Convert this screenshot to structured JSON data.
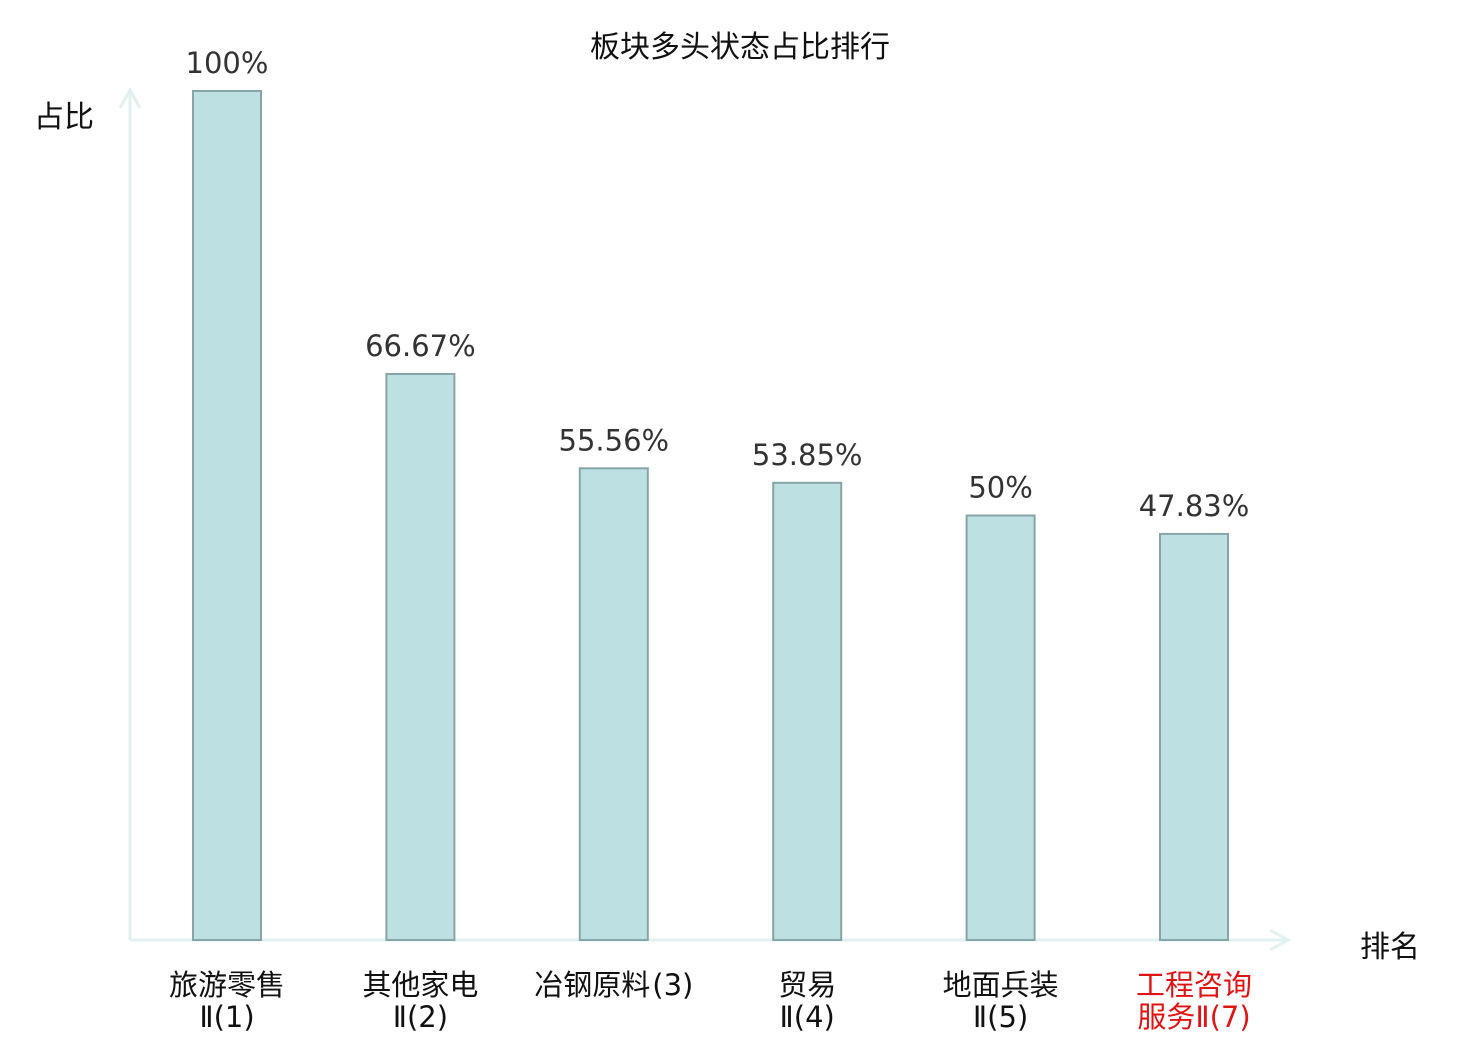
{
  "chart_data": {
    "type": "bar",
    "title": "板块多头状态占比排行",
    "xlabel": "排名",
    "ylabel": "占比",
    "ylim": [
      0,
      100
    ],
    "grid": false,
    "legend": "none",
    "categories": [
      {
        "name": "旅游零售",
        "rank": "Ⅱ(1)",
        "highlight": false
      },
      {
        "name": "其他家电",
        "rank": "Ⅱ(2)",
        "highlight": false
      },
      {
        "name": "冶钢原料",
        "rank": "(3)",
        "highlight": false
      },
      {
        "name": "贸易",
        "rank": "Ⅱ(4)",
        "highlight": false
      },
      {
        "name": "地面兵装",
        "rank": "Ⅱ(5)",
        "highlight": false
      },
      {
        "name": "工程咨询",
        "rank": "服务Ⅱ(7)",
        "highlight": true
      }
    ],
    "values": [
      100,
      66.67,
      55.56,
      53.85,
      50,
      47.83
    ],
    "value_labels": [
      "100%",
      "66.67%",
      "55.56%",
      "53.85%",
      "50%",
      "47.83%"
    ],
    "colors": {
      "bar_fill": "#bde0e2",
      "bar_stroke": "#86a5a9",
      "axis": "#e2f1ef",
      "label_text": "#333333",
      "category_text": "#111111",
      "highlight_text": "#e01414"
    }
  }
}
